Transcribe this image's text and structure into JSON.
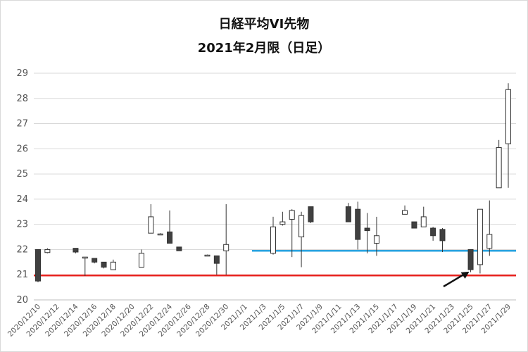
{
  "chart_data": {
    "type": "candlestick",
    "title": "日経平均VI先物",
    "subtitle": "2021年2月限（日足）",
    "ylim": [
      20,
      29
    ],
    "yticks": [
      20,
      21,
      22,
      23,
      24,
      25,
      26,
      27,
      28,
      29
    ],
    "xticks": [
      "2020/12/10",
      "2020/12/12",
      "2020/12/14",
      "2020/12/16",
      "2020/12/18",
      "2020/12/20",
      "2020/12/22",
      "2020/12/24",
      "2020/12/26",
      "2020/12/28",
      "2020/12/30",
      "2021/1/1",
      "2021/1/3",
      "2021/1/5",
      "2021/1/7",
      "2021/1/9",
      "2021/1/11",
      "2021/1/13",
      "2021/1/15",
      "2021/1/17",
      "2021/1/19",
      "2021/1/21",
      "2021/1/23",
      "2021/1/25",
      "2021/1/27",
      "2021/1/29"
    ],
    "grid": "horizontal",
    "candles": [
      {
        "date": "2020/12/10",
        "open": 22.0,
        "high": 22.0,
        "low": 20.7,
        "close": 20.75
      },
      {
        "date": "2020/12/11",
        "open": 21.88,
        "high": 22.05,
        "low": 21.85,
        "close": 22.0
      },
      {
        "date": "2020/12/14",
        "open": 22.05,
        "high": 22.05,
        "low": 21.85,
        "close": 21.9
      },
      {
        "date": "2020/12/15",
        "open": 21.7,
        "high": 21.7,
        "low": 20.95,
        "close": 21.7
      },
      {
        "date": "2020/12/16",
        "open": 21.65,
        "high": 21.65,
        "low": 21.45,
        "close": 21.5
      },
      {
        "date": "2020/12/17",
        "open": 21.5,
        "high": 21.5,
        "low": 21.25,
        "close": 21.3
      },
      {
        "date": "2020/12/18",
        "open": 21.2,
        "high": 21.6,
        "low": 21.2,
        "close": 21.5
      },
      {
        "date": "2020/12/21",
        "open": 21.3,
        "high": 22.0,
        "low": 21.3,
        "close": 21.85
      },
      {
        "date": "2020/12/22",
        "open": 22.65,
        "high": 23.8,
        "low": 22.65,
        "close": 23.3
      },
      {
        "date": "2020/12/23",
        "open": 22.62,
        "high": 22.65,
        "low": 22.6,
        "close": 22.62
      },
      {
        "date": "2020/12/24",
        "open": 22.7,
        "high": 23.55,
        "low": 22.25,
        "close": 22.25
      },
      {
        "date": "2020/12/25",
        "open": 22.1,
        "high": 22.1,
        "low": 21.95,
        "close": 21.95
      },
      {
        "date": "2020/12/28",
        "open": 21.78,
        "high": 21.8,
        "low": 21.75,
        "close": 21.78
      },
      {
        "date": "2020/12/29",
        "open": 21.75,
        "high": 21.75,
        "low": 21.0,
        "close": 21.45
      },
      {
        "date": "2020/12/30",
        "open": 21.95,
        "high": 23.8,
        "low": 21.0,
        "close": 22.2
      },
      {
        "date": "2021/1/4",
        "open": 21.85,
        "high": 23.3,
        "low": 21.8,
        "close": 22.9
      },
      {
        "date": "2021/1/5",
        "open": 23.0,
        "high": 23.5,
        "low": 22.95,
        "close": 23.1
      },
      {
        "date": "2021/1/6",
        "open": 23.2,
        "high": 23.6,
        "low": 21.7,
        "close": 23.55
      },
      {
        "date": "2021/1/7",
        "open": 22.5,
        "high": 23.5,
        "low": 21.3,
        "close": 23.35
      },
      {
        "date": "2021/1/8",
        "open": 23.7,
        "high": 23.7,
        "low": 23.05,
        "close": 23.1
      },
      {
        "date": "2021/1/12",
        "open": 23.7,
        "high": 23.85,
        "low": 23.1,
        "close": 23.1
      },
      {
        "date": "2021/1/13",
        "open": 23.6,
        "high": 23.9,
        "low": 22.0,
        "close": 22.4
      },
      {
        "date": "2021/1/14",
        "open": 22.85,
        "high": 23.45,
        "low": 21.85,
        "close": 22.75
      },
      {
        "date": "2021/1/15",
        "open": 22.25,
        "high": 23.3,
        "low": 21.75,
        "close": 22.55
      },
      {
        "date": "2021/1/18",
        "open": 23.4,
        "high": 23.75,
        "low": 23.4,
        "close": 23.55
      },
      {
        "date": "2021/1/19",
        "open": 23.1,
        "high": 23.1,
        "low": 22.85,
        "close": 22.85
      },
      {
        "date": "2021/1/20",
        "open": 22.9,
        "high": 23.7,
        "low": 22.9,
        "close": 23.3
      },
      {
        "date": "2021/1/21",
        "open": 22.85,
        "high": 22.9,
        "low": 22.35,
        "close": 22.55
      },
      {
        "date": "2021/1/22",
        "open": 22.8,
        "high": 22.85,
        "low": 21.9,
        "close": 22.35
      },
      {
        "date": "2021/1/25",
        "open": 22.0,
        "high": 22.0,
        "low": 21.1,
        "close": 21.2
      },
      {
        "date": "2021/1/26",
        "open": 21.4,
        "high": 23.6,
        "low": 21.05,
        "close": 23.6
      },
      {
        "date": "2021/1/27",
        "open": 22.05,
        "high": 23.95,
        "low": 21.75,
        "close": 22.6
      },
      {
        "date": "2021/1/28",
        "open": 24.45,
        "high": 26.35,
        "low": 24.45,
        "close": 26.05
      },
      {
        "date": "2021/1/29",
        "open": 26.2,
        "high": 28.6,
        "low": 24.45,
        "close": 28.35
      }
    ],
    "reference_lines": [
      {
        "value": 21.95,
        "color": "#29a3df"
      },
      {
        "value": 20.97,
        "color": "#e8201c"
      }
    ],
    "colors": {
      "up_fill": "#ffffff",
      "down_fill": "#404040",
      "outline": "#333333",
      "grid": "#d9d9d9",
      "tick_text": "#555555"
    }
  }
}
